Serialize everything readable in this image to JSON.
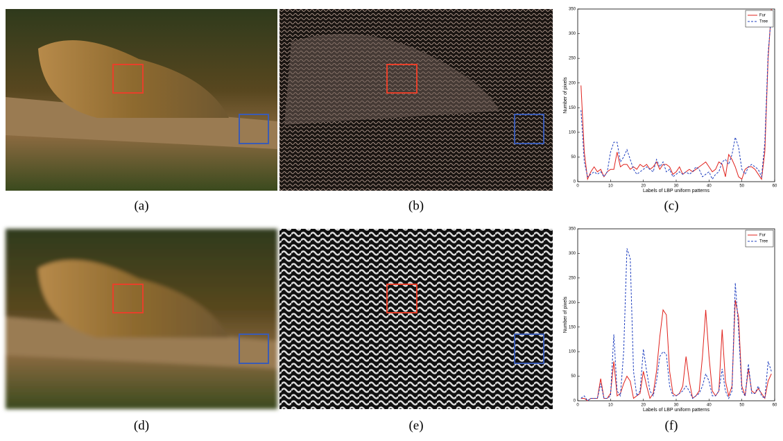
{
  "captions": [
    "(a)",
    "(b)",
    "(c)",
    "(d)",
    "(e)",
    "(f)"
  ],
  "chart_data": [
    {
      "type": "line",
      "xlabel": "Labels of LBP uniform patterns",
      "ylabel": "Number of pixels",
      "x": [
        1,
        2,
        3,
        4,
        5,
        6,
        7,
        8,
        9,
        10,
        11,
        12,
        13,
        14,
        15,
        16,
        17,
        18,
        19,
        20,
        21,
        22,
        23,
        24,
        25,
        26,
        27,
        28,
        29,
        30,
        31,
        32,
        33,
        34,
        35,
        36,
        37,
        38,
        39,
        40,
        41,
        42,
        43,
        44,
        45,
        46,
        47,
        48,
        49,
        50,
        51,
        52,
        53,
        54,
        55,
        56,
        57,
        58,
        59
      ],
      "series": [
        {
          "name": "Fur",
          "color": "#e0201b",
          "style": "solid",
          "values": [
            195,
            60,
            5,
            20,
            30,
            20,
            25,
            10,
            20,
            25,
            25,
            60,
            30,
            35,
            35,
            25,
            30,
            25,
            35,
            30,
            35,
            25,
            30,
            40,
            25,
            35,
            35,
            30,
            15,
            20,
            30,
            15,
            20,
            25,
            20,
            25,
            30,
            35,
            40,
            30,
            20,
            25,
            40,
            35,
            10,
            55,
            45,
            30,
            10,
            5,
            25,
            30,
            30,
            25,
            15,
            5,
            60,
            250,
            350
          ]
        },
        {
          "name": "Tree",
          "color": "#1f3fbf",
          "style": "dashed",
          "values": [
            145,
            40,
            10,
            15,
            20,
            15,
            20,
            10,
            20,
            60,
            80,
            80,
            40,
            50,
            65,
            45,
            25,
            15,
            20,
            25,
            30,
            25,
            20,
            45,
            30,
            40,
            20,
            25,
            10,
            15,
            20,
            15,
            20,
            15,
            20,
            30,
            25,
            10,
            15,
            20,
            5,
            15,
            20,
            40,
            45,
            35,
            55,
            90,
            70,
            25,
            15,
            30,
            35,
            30,
            25,
            10,
            80,
            260,
            340
          ]
        }
      ],
      "xlim": [
        0,
        60
      ],
      "xticks": [
        0,
        10,
        20,
        30,
        40,
        50,
        60
      ],
      "ylim": [
        0,
        350
      ],
      "yticks": [
        0,
        50,
        100,
        150,
        200,
        250,
        300,
        350
      ],
      "legend": "upper right"
    },
    {
      "type": "line",
      "xlabel": "Labels of LBP uniform patterns",
      "ylabel": "Number of pixels",
      "x": [
        1,
        2,
        3,
        4,
        5,
        6,
        7,
        8,
        9,
        10,
        11,
        12,
        13,
        14,
        15,
        16,
        17,
        18,
        19,
        20,
        21,
        22,
        23,
        24,
        25,
        26,
        27,
        28,
        29,
        30,
        31,
        32,
        33,
        34,
        35,
        36,
        37,
        38,
        39,
        40,
        41,
        42,
        43,
        44,
        45,
        46,
        47,
        48,
        49,
        50,
        51,
        52,
        53,
        54,
        55,
        56,
        57,
        58,
        59
      ],
      "series": [
        {
          "name": "Fur",
          "color": "#e0201b",
          "style": "solid",
          "values": [
            5,
            5,
            0,
            5,
            5,
            5,
            45,
            5,
            5,
            15,
            80,
            10,
            15,
            35,
            50,
            40,
            5,
            10,
            15,
            60,
            30,
            5,
            15,
            60,
            130,
            185,
            175,
            60,
            15,
            10,
            15,
            30,
            90,
            40,
            5,
            10,
            20,
            90,
            185,
            90,
            20,
            10,
            20,
            145,
            40,
            10,
            30,
            205,
            170,
            30,
            10,
            65,
            20,
            15,
            25,
            15,
            5,
            40,
            55
          ]
        },
        {
          "name": "Tree",
          "color": "#1f3fbf",
          "style": "dashed",
          "values": [
            5,
            10,
            0,
            5,
            5,
            5,
            35,
            5,
            5,
            10,
            135,
            20,
            10,
            100,
            310,
            290,
            60,
            10,
            20,
            105,
            60,
            20,
            10,
            40,
            90,
            100,
            95,
            30,
            10,
            10,
            15,
            20,
            30,
            20,
            5,
            10,
            15,
            30,
            55,
            40,
            10,
            10,
            20,
            65,
            20,
            5,
            20,
            240,
            145,
            20,
            10,
            75,
            15,
            15,
            30,
            10,
            5,
            80,
            60
          ]
        }
      ],
      "xlim": [
        0,
        60
      ],
      "xticks": [
        0,
        10,
        20,
        30,
        40,
        50,
        60
      ],
      "ylim": [
        0,
        350
      ],
      "yticks": [
        0,
        50,
        100,
        150,
        200,
        250,
        300,
        350
      ],
      "legend": "upper right"
    }
  ]
}
